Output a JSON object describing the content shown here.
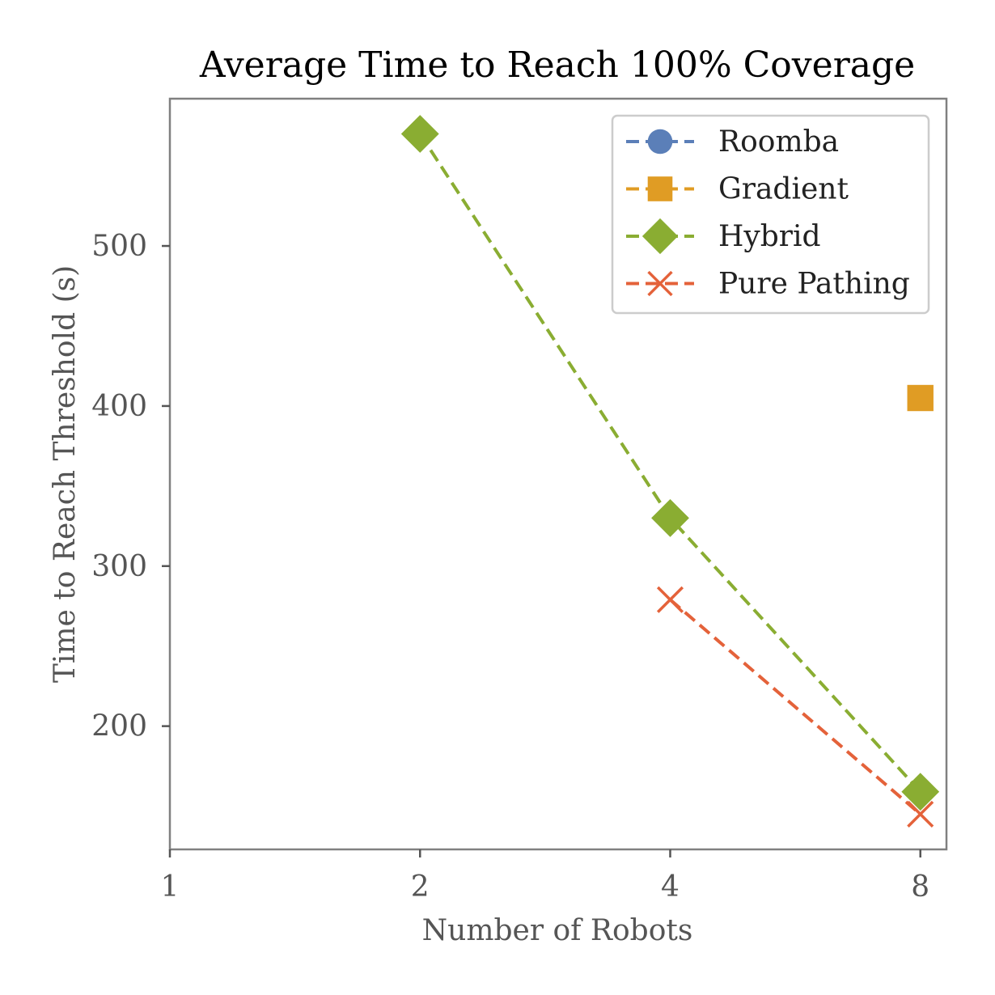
{
  "chart_data": {
    "type": "line",
    "title": "Average Time to Reach 100% Coverage",
    "xlabel": "Number of Robots",
    "ylabel": "Time to Reach Threshold (s)",
    "x_scale": "log2",
    "xlim": [
      1,
      8.6
    ],
    "ylim": [
      123,
      592
    ],
    "x_ticks": [
      1,
      2,
      4,
      8
    ],
    "x_tick_labels": [
      "1",
      "2",
      "4",
      "8"
    ],
    "y_ticks": [
      200,
      300,
      400,
      500
    ],
    "y_tick_labels": [
      "200",
      "300",
      "400",
      "500"
    ],
    "grid": false,
    "legend_position": "top-right",
    "series": [
      {
        "name": "Roomba",
        "color": "#5b7fb8",
        "marker": "circle",
        "points": []
      },
      {
        "name": "Gradient",
        "color": "#e09c24",
        "marker": "square",
        "points": [
          [
            8,
            405
          ]
        ]
      },
      {
        "name": "Hybrid",
        "color": "#8aad32",
        "marker": "diamond",
        "points": [
          [
            2,
            570
          ],
          [
            4,
            330
          ],
          [
            8,
            159
          ]
        ]
      },
      {
        "name": "Pure Pathing",
        "color": "#e4623a",
        "marker": "x",
        "points": [
          [
            4,
            279
          ],
          [
            8,
            145
          ]
        ]
      }
    ]
  }
}
